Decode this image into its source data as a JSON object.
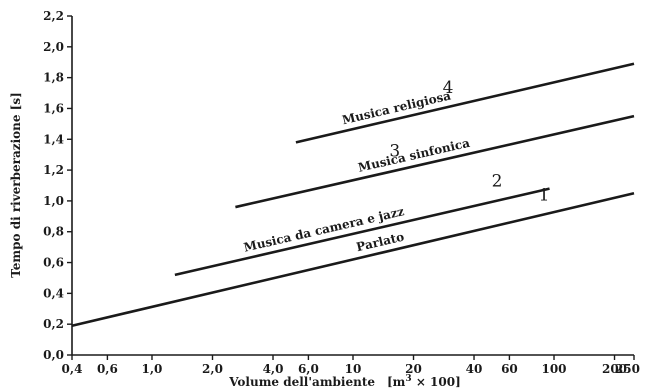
{
  "chart_data": {
    "type": "line",
    "xlabel": "Volume dell'ambiente",
    "xlabel_unit_pre": "[m",
    "xlabel_unit_sup": "3",
    "xlabel_unit_post": " × 100]",
    "ylabel": "Tempo di riverberazione [s]",
    "x_scale": "log",
    "xlim": [
      0.4,
      250
    ],
    "ylim": [
      0,
      2.2
    ],
    "x_ticks": [
      {
        "value": 0.4,
        "label": "0,4"
      },
      {
        "value": 0.6,
        "label": "0,6"
      },
      {
        "value": 1.0,
        "label": "1,0"
      },
      {
        "value": 2.0,
        "label": "2,0"
      },
      {
        "value": 4.0,
        "label": "4,0"
      },
      {
        "value": 6.0,
        "label": "6,0"
      },
      {
        "value": 10,
        "label": "10"
      },
      {
        "value": 20,
        "label": "20"
      },
      {
        "value": 40,
        "label": "40"
      },
      {
        "value": 60,
        "label": "60"
      },
      {
        "value": 100,
        "label": "100"
      },
      {
        "value": 200,
        "label": "200"
      },
      {
        "value": 250,
        "label": "250"
      }
    ],
    "y_ticks": [
      {
        "value": 0.0,
        "label": "0,0"
      },
      {
        "value": 0.2,
        "label": "0,2"
      },
      {
        "value": 0.4,
        "label": "0,4"
      },
      {
        "value": 0.6,
        "label": "0,6"
      },
      {
        "value": 0.8,
        "label": "0,8"
      },
      {
        "value": 1.0,
        "label": "1,0"
      },
      {
        "value": 1.2,
        "label": "1,2"
      },
      {
        "value": 1.4,
        "label": "1,4"
      },
      {
        "value": 1.6,
        "label": "1,6"
      },
      {
        "value": 1.8,
        "label": "1,8"
      },
      {
        "value": 2.0,
        "label": "2,0"
      },
      {
        "value": 2.2,
        "label": "2,2"
      }
    ],
    "grid": false,
    "series": [
      {
        "number": "1",
        "name": "Parlato",
        "x": [
          0.4,
          250
        ],
        "y": [
          0.19,
          1.05
        ]
      },
      {
        "number": "2",
        "name": "Musica da camera e jazz",
        "x": [
          1.3,
          95
        ],
        "y": [
          0.52,
          1.08
        ]
      },
      {
        "number": "3",
        "name": "Musica sinfonica",
        "x": [
          2.6,
          250
        ],
        "y": [
          0.96,
          1.55
        ]
      },
      {
        "number": "4",
        "name": "Musica religiosa",
        "x": [
          5.2,
          250
        ],
        "y": [
          1.38,
          1.89
        ]
      }
    ]
  }
}
